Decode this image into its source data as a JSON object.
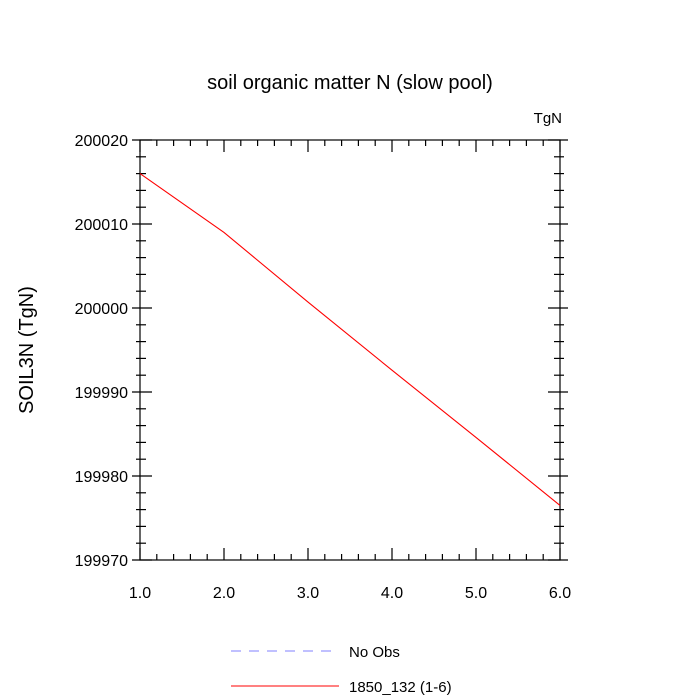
{
  "chart_data": {
    "type": "line",
    "title": "soil organic matter N (slow pool)",
    "units_label": "TgN",
    "ylabel": "SOIL3N  (TgN)",
    "xlabel": "",
    "xlim": [
      1.0,
      6.0
    ],
    "ylim": [
      199970,
      200020
    ],
    "x_ticks": [
      1.0,
      2.0,
      3.0,
      4.0,
      5.0,
      6.0
    ],
    "x_tick_labels": [
      "1.0",
      "2.0",
      "3.0",
      "4.0",
      "5.0",
      "6.0"
    ],
    "y_ticks": [
      199970,
      199980,
      199990,
      200000,
      200010,
      200020
    ],
    "y_tick_labels": [
      "199970",
      "199980",
      "199990",
      "200000",
      "200010",
      "200020"
    ],
    "grid": false,
    "legend_position": "bottom-center",
    "series": [
      {
        "name": "1850_132 (1-6)",
        "color": "#ff0000",
        "style": "solid",
        "x": [
          1.0,
          2.0,
          3.0,
          4.0,
          5.0,
          6.0
        ],
        "y": [
          200016.0,
          200009.0,
          200000.7,
          199992.6,
          199984.6,
          199976.5
        ]
      }
    ],
    "legend": [
      {
        "label": "No Obs",
        "color": "#8080ff",
        "style": "dashed"
      },
      {
        "label": "1850_132 (1-6)",
        "color": "#ff0000",
        "style": "solid"
      }
    ]
  }
}
